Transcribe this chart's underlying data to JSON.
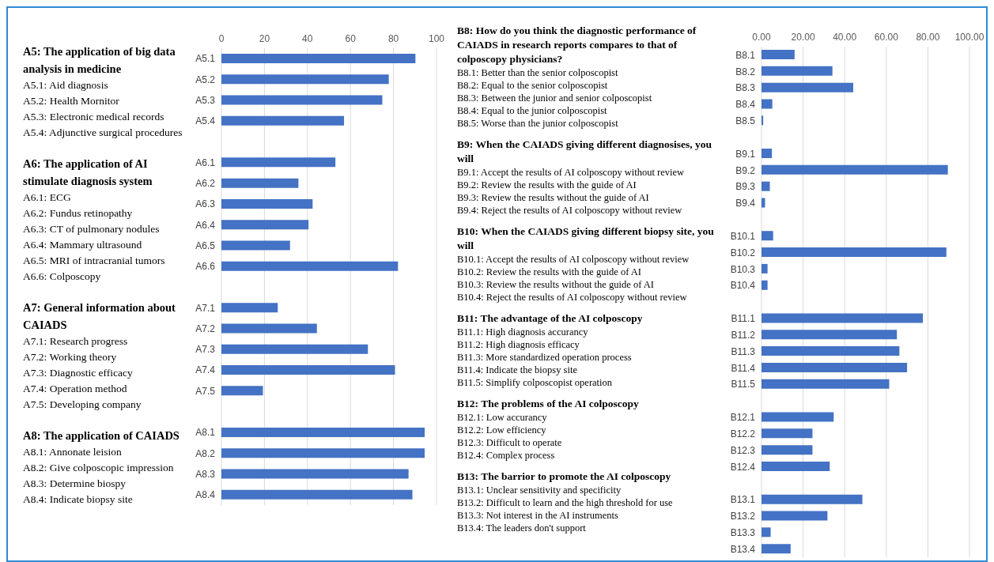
{
  "chart_data": [
    {
      "type": "bar",
      "orientation": "horizontal",
      "categories": [
        "A5.1",
        "A5.2",
        "A5.3",
        "A5.4",
        null,
        "A6.1",
        "A6.2",
        "A6.3",
        "A6.4",
        "A6.5",
        "A6.6",
        null,
        "A7.1",
        "A7.2",
        "A7.3",
        "A7.4",
        "A7.5",
        null,
        "A8.1",
        "A8.2",
        "A8.3",
        "A8.4"
      ],
      "values": [
        90.2,
        77.8,
        74.8,
        57.0,
        null,
        53.0,
        35.8,
        42.4,
        40.5,
        31.9,
        82.1,
        null,
        26.2,
        44.4,
        68.1,
        80.7,
        19.3,
        null,
        94.5,
        94.5,
        87.0,
        88.8
      ],
      "color": "#4472c4",
      "xlim": [
        0,
        100
      ],
      "xticks": [
        0,
        20,
        40,
        60,
        80,
        100
      ],
      "grid": "x",
      "annotations": [
        "A5: The application of big data analysis in medicine",
        "A5.1: Aid diagnosis",
        "A5.2: Health Mornitor",
        "A5.3: Electronic medical records",
        "A5.4: Adjunctive surgical procedures",
        "A6: The application of AI stimulate diagnosis system",
        "A6.1: ECG",
        "A6.2: Fundus retinopathy",
        "A6.3: CT of pulmonary nodules",
        "A6.4: Mammary ultrasound",
        "A6.5: MRI of intracranial tumors",
        "A6.6: Colposcopy",
        "A7: General information about CAIADS",
        "A7.1: Research progress",
        "A7.2: Working theory",
        "A7.3: Diagnostic efficacy",
        "A7.4: Operation method",
        "A7.5: Developing company",
        "A8: The application of CAIADS",
        "A8.1: Annonate leision",
        "A8.2: Give colposcopic impression",
        "A8.3: Determine biospy",
        "A8.4: Indicate biopsy site"
      ]
    },
    {
      "type": "bar",
      "orientation": "horizontal",
      "categories": [
        "B8.1",
        "B8.2",
        "B8.3",
        "B8.4",
        "B8.5",
        null,
        "B9.1",
        "B9.2",
        "B9.3",
        "B9.4",
        null,
        "B10.1",
        "B10.2",
        "B10.3",
        "B10.4",
        null,
        "B11.1",
        "B11.2",
        "B11.3",
        "B11.4",
        "B11.5",
        null,
        "B12.1",
        "B12.2",
        "B12.3",
        "B12.4",
        null,
        "B13.1",
        "B13.2",
        "B13.3",
        "B13.4"
      ],
      "values": [
        15.9,
        34.1,
        44.1,
        5.2,
        0.8,
        null,
        5.0,
        89.6,
        4.0,
        1.7,
        null,
        5.6,
        88.9,
        2.9,
        2.9,
        null,
        77.6,
        65.1,
        66.3,
        70.0,
        61.4,
        null,
        34.7,
        24.5,
        24.5,
        32.8,
        null,
        48.5,
        31.7,
        4.4,
        14.0
      ],
      "color": "#4472c4",
      "xlim": [
        0,
        100
      ],
      "xticks": [
        {
          "value": 0,
          "label": "0.00"
        },
        {
          "value": 20,
          "label": "20.00"
        },
        {
          "value": 40,
          "label": "40.00"
        },
        {
          "value": 60,
          "label": "60.00"
        },
        {
          "value": 80,
          "label": "80.00"
        },
        {
          "value": 100,
          "label": "100.00"
        }
      ],
      "grid": "x",
      "annotations": [
        "B8: How do you think the diagnostic performance of CAIADS in research reports compares to that of colposcopy physicians?",
        "B8.1: Better than the senior colposcopist",
        "B8.2: Equal to the senior colposcopist",
        "B8.3: Between the junior and senior colposcopist",
        "B8.4: Equal to the junior colposcopist",
        "B8.5: Worse than the junior colposcopist",
        "B9: When the CAIADS giving different diagnosises, you will",
        "B9.1: Accept the results of AI colposcopy without review",
        "B9.2: Review the results with the guide of AI",
        "B9.3: Review the results without the guide of AI",
        "B9.4: Reject the results of AI colposcopy without review",
        "B10: When the CAIADS giving different biopsy site, you will",
        "B10.1: Accept the results of AI colposcopy without review",
        "B10.2: Review the results with the guide of AI",
        "B10.3: Review the results without the guide of AI",
        "B10.4: Reject the results of AI colposcopy without review",
        "B11: The advantage of the AI colposcopy",
        "B11.1: High diagnosis accurancy",
        "B11.2: High diagnosis efficacy",
        "B11.3: More standardized operation process",
        "B11.4: Indicate the biopsy site",
        "B11.5: Simplify colposcopist operation",
        "B12: The problems of the AI colposcopy",
        "B12.1: Low accurancy",
        "B12.2: Low efficiency",
        "B12.3: Difficult to operate",
        "B12.4: Complex process",
        "B13: The barrior to promote the AI colposcopy",
        "B13.1: Unclear sensitivity and specificity",
        "B13.2: Difficult to learn and the high threshold for use",
        "B13.3: Not interest in the AI instruments",
        "B13.4: The leaders don't support"
      ]
    }
  ]
}
